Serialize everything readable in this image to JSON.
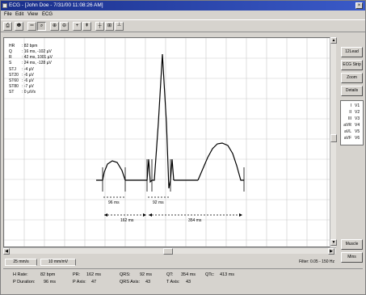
{
  "window": {
    "title": "ECG - [John Doe - 7/31/00  11:08:26 AM]",
    "close_glyph": "×"
  },
  "menu": [
    "File",
    "Edit",
    "View",
    "ECG"
  ],
  "toolbar": {
    "buttons": [
      {
        "name": "print-button",
        "glyph": "⎙"
      },
      {
        "name": "options-button",
        "glyph": "❶"
      },
      {
        "name": "measure-line-button",
        "glyph": "═"
      },
      {
        "name": "zoom-select-button",
        "glyph": "⌕"
      },
      {
        "name": "zoom-in-button",
        "glyph": "⊕"
      },
      {
        "name": "zoom-out-button",
        "glyph": "⊖"
      },
      {
        "name": "add-marker-button",
        "glyph": "+"
      },
      {
        "name": "add-marker-alt-button",
        "glyph": "⇞"
      },
      {
        "name": "grid-button",
        "glyph": "┼"
      },
      {
        "name": "layout-button",
        "glyph": "⊞"
      },
      {
        "name": "baseline-button",
        "glyph": "┴"
      }
    ]
  },
  "measurements": [
    {
      "label": "HR",
      "value": ": 82 bpm"
    },
    {
      "label": "Q",
      "value": ": 16 ms, -102 µV"
    },
    {
      "label": "R",
      "value": ": 42 ms, 1001 µV"
    },
    {
      "label": "S",
      "value": ": 24 ms, -128 µV"
    },
    {
      "label": "STJ",
      "value": ": -4 µV"
    },
    {
      "label": "ST20",
      "value": ": -6 µV"
    },
    {
      "label": "ST60",
      "value": ": -6 µV"
    },
    {
      "label": "ST80",
      "value": ": -7 µV"
    },
    {
      "label": "ST",
      "value": ": 0 µV/s"
    }
  ],
  "annotations": {
    "p_duration": "96 ms",
    "qrs_duration": "92 ms",
    "pr_interval": "162 ms",
    "qt_interval": "354 ms"
  },
  "side_buttons": [
    "12Lead",
    "ECG Strip",
    "Zoom",
    "Details"
  ],
  "leads": [
    [
      "I",
      "V1"
    ],
    [
      "II",
      "V2"
    ],
    [
      "III",
      "V3"
    ],
    [
      "aVR",
      "V4"
    ],
    [
      "aVL",
      "V5"
    ],
    [
      "aVF",
      "V6"
    ]
  ],
  "bottom_buttons": [
    "Muscle",
    "Mins"
  ],
  "tabs": [
    "25 mm/s",
    "10 mm/mV"
  ],
  "filter": "Filter: 0.05 - 150 Hz",
  "status": {
    "row1": [
      {
        "label": "H Rate:",
        "value": "82 bpm"
      },
      {
        "label": "PR:",
        "value": "162 ms"
      },
      {
        "label": "QRS:",
        "value": "92 ms"
      },
      {
        "label": "QT:",
        "value": "354 ms"
      },
      {
        "label": "QTc:",
        "value": "413 ms"
      }
    ],
    "row2": [
      {
        "label": "P Duration:",
        "value": "96 ms"
      },
      {
        "label": "P Axis:",
        "value": "47"
      },
      {
        "label": "QRS Axis:",
        "value": "43"
      },
      {
        "label": "T Axis:",
        "value": "43"
      }
    ]
  },
  "colors": {
    "grid": "#c9c9c9",
    "trace": "#000000",
    "title_bar": "#1a2f8a"
  }
}
